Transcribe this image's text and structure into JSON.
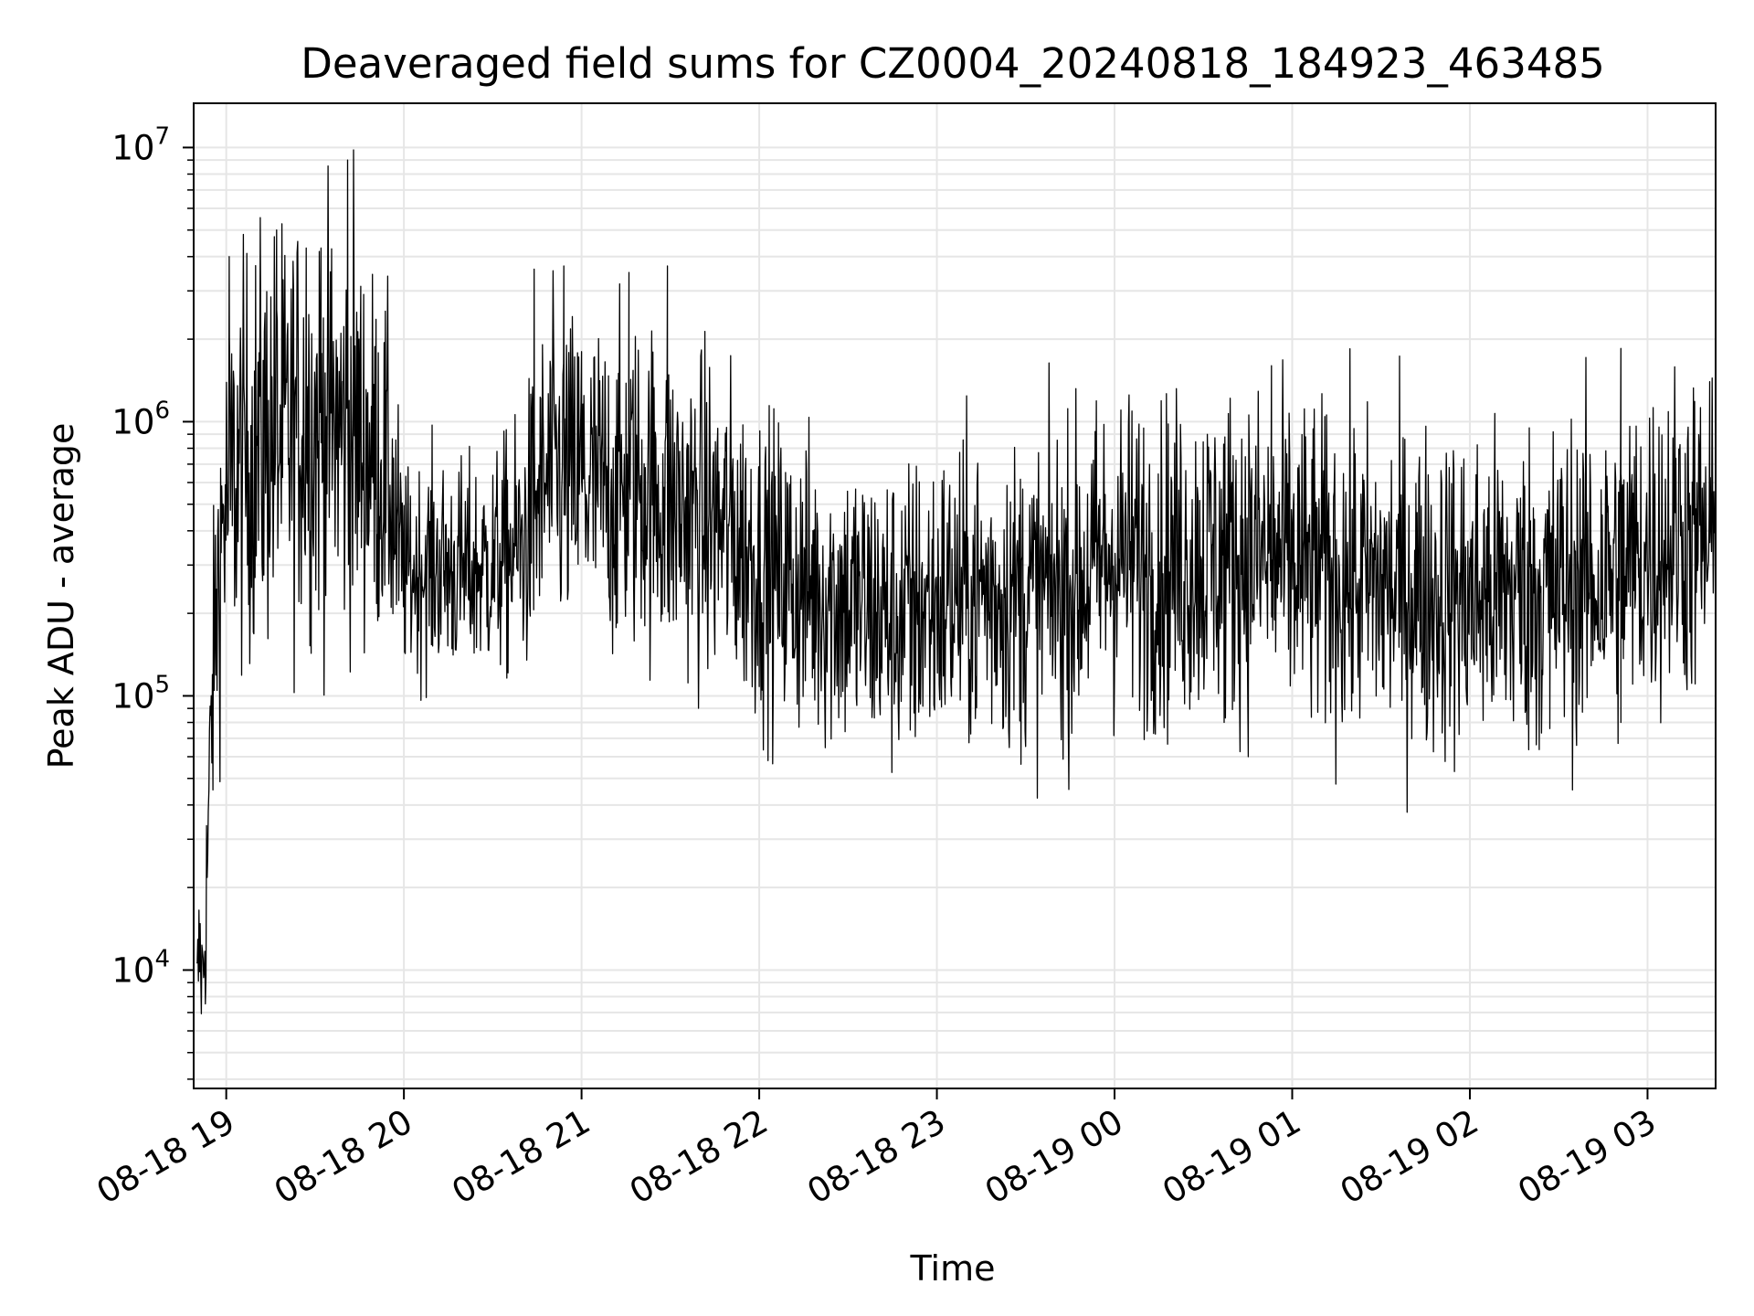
{
  "chart_data": {
    "type": "line",
    "title": "Deaveraged field sums for CZ0004_20240818_184923_463485",
    "xlabel": "Time",
    "ylabel": "Peak ADU - average",
    "yscale": "log",
    "grid": true,
    "legend": "none",
    "colors": {
      "line": "#000000",
      "grid": "#e6e6e6"
    },
    "xlim": [
      "2024-08-18 18:49",
      "2024-08-19 03:23"
    ],
    "ylim": [
      3700,
      14500000
    ],
    "x_ticks": [
      {
        "label": "08-18 19",
        "value": "2024-08-18 19:00"
      },
      {
        "label": "08-18 20",
        "value": "2024-08-18 20:00"
      },
      {
        "label": "08-18 21",
        "value": "2024-08-18 21:00"
      },
      {
        "label": "08-18 22",
        "value": "2024-08-18 22:00"
      },
      {
        "label": "08-18 23",
        "value": "2024-08-18 23:00"
      },
      {
        "label": "08-19 00",
        "value": "2024-08-19 00:00"
      },
      {
        "label": "08-19 01",
        "value": "2024-08-19 01:00"
      },
      {
        "label": "08-19 02",
        "value": "2024-08-19 02:00"
      },
      {
        "label": "08-19 03",
        "value": "2024-08-19 03:00"
      }
    ],
    "y_ticks": [
      {
        "base": "10",
        "exp": "4",
        "value": 10000
      },
      {
        "base": "10",
        "exp": "5",
        "value": 100000
      },
      {
        "base": "10",
        "exp": "6",
        "value": 1000000
      },
      {
        "base": "10",
        "exp": "7",
        "value": 10000000
      }
    ],
    "series": [
      {
        "x": [
          "2024-08-18 18:50",
          "2024-08-18 18:51",
          "2024-08-18 18:52",
          "2024-08-18 18:53",
          "2024-08-18 18:55",
          "2024-08-18 18:57",
          "2024-08-18 18:59",
          "2024-08-18 19:02",
          "2024-08-18 19:05",
          "2024-08-18 19:10",
          "2024-08-18 19:15",
          "2024-08-18 19:20",
          "2024-08-18 19:25",
          "2024-08-18 19:30",
          "2024-08-18 19:35",
          "2024-08-18 19:40",
          "2024-08-18 19:45",
          "2024-08-18 19:50",
          "2024-08-18 19:55",
          "2024-08-18 19:58",
          "2024-08-18 20:00",
          "2024-08-18 20:10",
          "2024-08-18 20:20",
          "2024-08-18 20:30",
          "2024-08-18 20:40",
          "2024-08-18 20:45",
          "2024-08-18 20:50",
          "2024-08-18 21:00",
          "2024-08-18 21:10",
          "2024-08-18 21:20",
          "2024-08-18 21:30",
          "2024-08-18 21:40",
          "2024-08-18 21:50",
          "2024-08-18 22:00",
          "2024-08-18 22:15",
          "2024-08-18 22:30",
          "2024-08-18 22:45",
          "2024-08-18 23:00",
          "2024-08-18 23:15",
          "2024-08-18 23:30",
          "2024-08-18 23:45",
          "2024-08-19 00:00",
          "2024-08-19 00:15",
          "2024-08-19 00:30",
          "2024-08-19 00:45",
          "2024-08-19 01:00",
          "2024-08-19 01:15",
          "2024-08-19 01:30",
          "2024-08-19 01:45",
          "2024-08-19 02:00",
          "2024-08-19 02:15",
          "2024-08-19 02:30",
          "2024-08-19 02:45",
          "2024-08-19 03:00",
          "2024-08-19 03:10",
          "2024-08-19 03:20",
          "2024-08-19 03:23"
        ],
        "y": [
          8000,
          12000,
          9000,
          15000,
          80000,
          250000,
          450000,
          600000,
          700000,
          800000,
          900000,
          850000,
          1000000,
          950000,
          1000000,
          900000,
          850000,
          750000,
          600000,
          350000,
          280000,
          300000,
          280000,
          300000,
          350000,
          500000,
          650000,
          600000,
          550000,
          600000,
          500000,
          450000,
          400000,
          300000,
          250000,
          220000,
          190000,
          220000,
          240000,
          230000,
          250000,
          330000,
          300000,
          320000,
          330000,
          300000,
          270000,
          250000,
          240000,
          230000,
          240000,
          250000,
          270000,
          330000,
          400000,
          350000,
          300000
        ],
        "spread": [
          0.12,
          0.15,
          0.15,
          0.18,
          0.25,
          0.3,
          0.33,
          0.35,
          0.36,
          0.38,
          0.38,
          0.38,
          0.38,
          0.38,
          0.38,
          0.38,
          0.36,
          0.33,
          0.3,
          0.26,
          0.18,
          0.2,
          0.2,
          0.2,
          0.24,
          0.28,
          0.3,
          0.3,
          0.3,
          0.3,
          0.3,
          0.3,
          0.29,
          0.28,
          0.28,
          0.28,
          0.28,
          0.28,
          0.28,
          0.28,
          0.29,
          0.3,
          0.3,
          0.3,
          0.3,
          0.3,
          0.3,
          0.3,
          0.3,
          0.3,
          0.3,
          0.3,
          0.3,
          0.3,
          0.3,
          0.3,
          0.3
        ],
        "peaks": [
          {
            "x": "2024-08-18 19:01",
            "y": 4000000
          },
          {
            "x": "2024-08-18 19:17",
            "y": 5000000
          },
          {
            "x": "2024-08-18 19:27",
            "y": 4300000
          },
          {
            "x": "2024-08-18 19:32",
            "y": 4300000
          },
          {
            "x": "2024-08-18 19:41",
            "y": 9000000
          },
          {
            "x": "2024-08-18 19:43",
            "y": 9800000
          },
          {
            "x": "2024-08-18 20:44",
            "y": 3600000
          },
          {
            "x": "2024-08-18 20:54",
            "y": 3700000
          },
          {
            "x": "2024-08-18 21:16",
            "y": 3500000
          },
          {
            "x": "2024-08-18 21:29",
            "y": 3700000
          },
          {
            "x": "2024-08-18 21:00",
            "y": 1800000
          },
          {
            "x": "2024-08-19 00:53",
            "y": 1600000
          },
          {
            "x": "2024-08-19 02:51",
            "y": 1850000
          },
          {
            "x": "2024-08-19 03:21",
            "y": 1400000
          },
          {
            "x": "2024-08-18 22:51",
            "y": 75000
          },
          {
            "x": "2024-08-19 02:27",
            "y": 76000
          },
          {
            "x": "2024-08-19 00:37",
            "y": 80000
          },
          {
            "x": "2024-08-19 02:51",
            "y": 80000
          },
          {
            "x": "2024-08-19 03:23",
            "y": 80000
          }
        ]
      }
    ]
  }
}
